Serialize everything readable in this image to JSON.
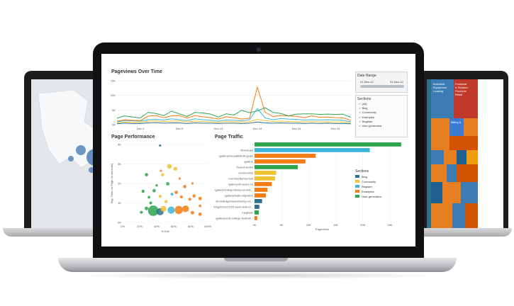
{
  "dashboard": {
    "pageviews_title": "Pageviews Over Time",
    "performance_title": "Page Performance",
    "traffic_title": "Page Traffic",
    "date_range": {
      "title": "Date Range",
      "start": "01-Dec-12",
      "end": "31-Dec-12"
    },
    "sections_filter": {
      "title": "Sections",
      "items": [
        "(All)",
        "Blog",
        "Community",
        "Examples",
        "Register",
        "User-generated"
      ]
    },
    "sections_legend": {
      "title": "Sections"
    }
  },
  "colors": {
    "blog": "#2f6f8f",
    "community": "#f1c232",
    "examples": "#f57c14",
    "register": "#3fb6d9",
    "user_generated": "#2ea44f",
    "lid": "#111113"
  },
  "chart_data": [
    {
      "type": "line",
      "title": "Pageviews Over Time",
      "x_ticks": [
        "Dec 4",
        "Dec 9",
        "Dec 14",
        "Dec 19",
        "Dec 24",
        "Dec 29"
      ],
      "y_ticks": [
        "0K",
        "5K",
        "10K",
        "15K"
      ],
      "ylim": [
        0,
        15000
      ],
      "x": [
        1,
        2,
        3,
        4,
        5,
        6,
        7,
        8,
        9,
        10,
        11,
        12,
        13,
        14,
        15,
        16,
        17,
        18,
        19,
        20,
        21,
        22,
        23,
        24,
        25,
        26,
        27,
        28,
        29,
        30,
        31
      ],
      "series": [
        {
          "name": "User-generated",
          "color": "#2ea44f",
          "values": [
            2200,
            3000,
            2600,
            2300,
            4200,
            3800,
            3100,
            4600,
            3700,
            2800,
            4200,
            4000,
            3600,
            2600,
            3700,
            3300,
            4900,
            4100,
            4700,
            5800,
            4200,
            3800,
            3000,
            3600,
            3700,
            3700,
            3500,
            3600,
            3500,
            3600,
            2500
          ]
        },
        {
          "name": "Examples",
          "color": "#f57c14",
          "values": [
            1200,
            1700,
            1500,
            1400,
            2900,
            3100,
            2400,
            3000,
            3100,
            2200,
            3100,
            2700,
            2400,
            1900,
            2700,
            2400,
            1900,
            2200,
            12800,
            4200,
            2800,
            3100,
            3000,
            2800,
            2400,
            3000,
            2500,
            2600,
            2400,
            2300,
            1500
          ]
        },
        {
          "name": "Register",
          "color": "#3fb6d9",
          "values": [
            900,
            1400,
            1300,
            1200,
            1700,
            1800,
            1600,
            2000,
            1700,
            1400,
            2000,
            1700,
            1500,
            1200,
            1600,
            1500,
            1300,
            1700,
            5500,
            2300,
            1700,
            2100,
            1900,
            1800,
            1600,
            1700,
            1600,
            1700,
            1600,
            1500,
            1000
          ]
        },
        {
          "name": "Community",
          "color": "#f1c232",
          "values": [
            600,
            900,
            800,
            800,
            1200,
            1300,
            1100,
            1200,
            1300,
            900,
            1200,
            1100,
            1000,
            800,
            1100,
            1000,
            900,
            1000,
            1800,
            1400,
            1100,
            1200,
            1100,
            1000,
            900,
            1100,
            900,
            1000,
            900,
            900,
            600
          ]
        },
        {
          "name": "Blog",
          "color": "#2f6f8f",
          "values": [
            300,
            500,
            400,
            400,
            600,
            700,
            500,
            600,
            600,
            400,
            600,
            500,
            500,
            400,
            500,
            500,
            400,
            500,
            900,
            600,
            500,
            600,
            500,
            500,
            400,
            500,
            400,
            500,
            400,
            400,
            300
          ]
        }
      ]
    },
    {
      "type": "scatter",
      "title": "Page Performance",
      "xlabel": "% Exit",
      "ylabel": "Avg. Time on Page (in seconds)",
      "x_ticks": [
        "0%",
        "20%",
        "40%",
        "60%",
        "80%",
        "100%"
      ],
      "y_ticks": [
        "0K",
        "1K",
        "2K",
        "3K",
        "4K"
      ],
      "xlim": [
        0,
        100
      ],
      "ylim": [
        0,
        4000
      ],
      "points": [
        {
          "x": 36,
          "y": 600,
          "r": 4.6,
          "c": "#2ea44f"
        },
        {
          "x": 44,
          "y": 550,
          "r": 3.2,
          "c": "#2f6f8f"
        },
        {
          "x": 48,
          "y": 700,
          "r": 2.6,
          "c": "#f1c232"
        },
        {
          "x": 57,
          "y": 630,
          "r": 3.2,
          "c": "#3fb6d9"
        },
        {
          "x": 66,
          "y": 640,
          "r": 3.6,
          "c": "#f57c14"
        },
        {
          "x": 74,
          "y": 700,
          "r": 3.0,
          "c": "#f57c14"
        },
        {
          "x": 82,
          "y": 500,
          "r": 1.6,
          "c": "#f57c14"
        },
        {
          "x": 91,
          "y": 420,
          "r": 1.5,
          "c": "#f57c14"
        },
        {
          "x": 55,
          "y": 2880,
          "r": 2.1,
          "c": "#f1c232"
        },
        {
          "x": 62,
          "y": 2750,
          "r": 1.7,
          "c": "#f1c232"
        },
        {
          "x": 47,
          "y": 2450,
          "r": 1.4,
          "c": "#f1c232"
        },
        {
          "x": 28,
          "y": 2450,
          "r": 1.5,
          "c": "#2ea44f"
        },
        {
          "x": 37,
          "y": 1630,
          "r": 1.5,
          "c": "#2ea44f"
        },
        {
          "x": 53,
          "y": 1980,
          "r": 1.5,
          "c": "#2ea44f"
        },
        {
          "x": 63,
          "y": 1540,
          "r": 1.5,
          "c": "#f57c14"
        },
        {
          "x": 73,
          "y": 1840,
          "r": 1.5,
          "c": "#f57c14"
        },
        {
          "x": 84,
          "y": 1360,
          "r": 1.5,
          "c": "#f57c14"
        },
        {
          "x": 91,
          "y": 1230,
          "r": 1.5,
          "c": "#f57c14"
        },
        {
          "x": 24,
          "y": 1600,
          "r": 1.4,
          "c": "#2ea44f"
        },
        {
          "x": 31,
          "y": 1290,
          "r": 1.2,
          "c": "#2ea44f"
        },
        {
          "x": 28,
          "y": 720,
          "r": 1.6,
          "c": "#2ea44f"
        },
        {
          "x": 33,
          "y": 1000,
          "r": 1.3,
          "c": "#2ea44f"
        },
        {
          "x": 44,
          "y": 1340,
          "r": 1.4,
          "c": "#f1c232"
        },
        {
          "x": 51,
          "y": 1070,
          "r": 1.4,
          "c": "#f1c232"
        },
        {
          "x": 69,
          "y": 1310,
          "r": 1.4,
          "c": "#f57c14"
        },
        {
          "x": 79,
          "y": 1190,
          "r": 1.3,
          "c": "#f57c14"
        },
        {
          "x": 91,
          "y": 850,
          "r": 1.2,
          "c": "#f57c14"
        },
        {
          "x": 22,
          "y": 520,
          "r": 1.3,
          "c": "#2ea44f"
        },
        {
          "x": 58,
          "y": 1450,
          "r": 1.3,
          "c": "#3fb6d9"
        },
        {
          "x": 40,
          "y": 1900,
          "r": 1.1,
          "c": "#2ea44f"
        },
        {
          "x": 45,
          "y": 2650,
          "r": 1.0,
          "c": "#f57c14"
        },
        {
          "x": 67,
          "y": 2250,
          "r": 1.0,
          "c": "#f57c14"
        },
        {
          "x": 82,
          "y": 2000,
          "r": 1.0,
          "c": "#f57c14"
        },
        {
          "x": 44,
          "y": 3950,
          "r": 1.0,
          "c": "#2f6f8f"
        }
      ]
    },
    {
      "type": "bar",
      "title": "Page Traffic",
      "xlabel": "Pageviews",
      "x_ticks": [
        "0K",
        "5K",
        "10K",
        "15K",
        "20K",
        "25K"
      ],
      "xlim": [
        0,
        27500
      ],
      "categories": [
        "/",
        "/download",
        "/gallery/mesa8936-fit-goals",
        "/gallery",
        "/how-it-works",
        "/community",
        "/community/my-hub",
        "/gallery/30-years-cd",
        "/gallery/voting-history-us-stat...",
        "/gallery/state-migration",
        "/knowledgebase/sharing-vis...",
        "/blog/2012/12/25-best-ninth-el...",
        "/upgrade",
        "/gallery/cost-college-football..."
      ],
      "values": [
        27100,
        21300,
        11300,
        9400,
        8000,
        4000,
        3800,
        3200,
        2400,
        2100,
        1400,
        900,
        800,
        500
      ],
      "bar_colors": [
        "#2ea44f",
        "#3fb6d9",
        "#f57c14",
        "#f57c14",
        "#2ea44f",
        "#f1c232",
        "#f1c232",
        "#f57c14",
        "#f57c14",
        "#f57c14",
        "#2f6f8f",
        "#2f6f8f",
        "#2ea44f",
        "#f57c14"
      ]
    }
  ]
}
